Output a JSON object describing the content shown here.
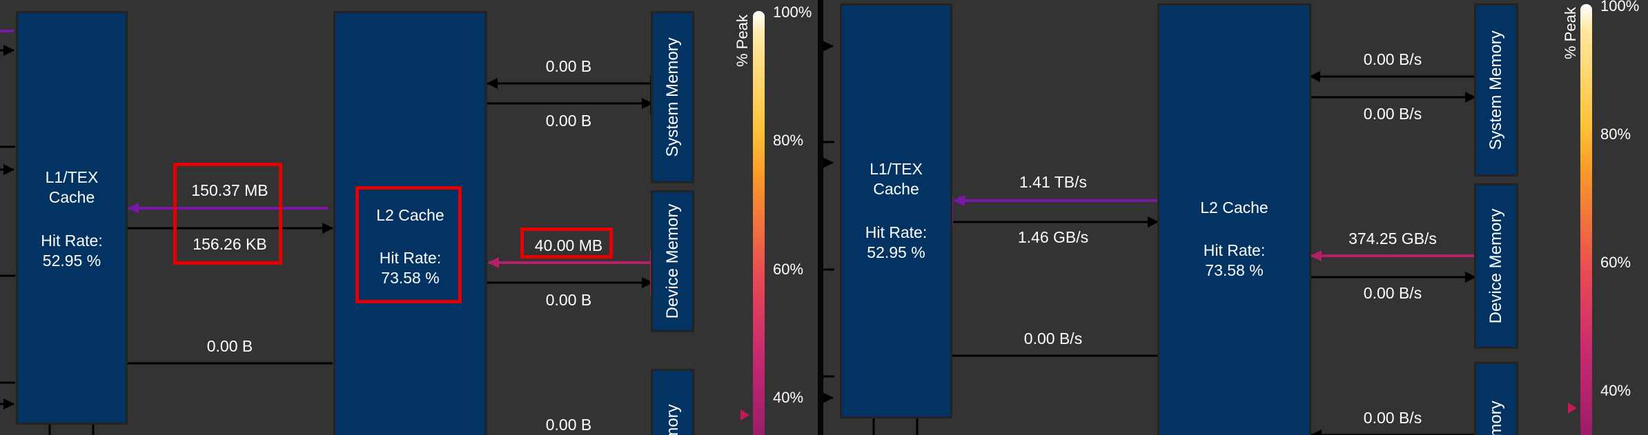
{
  "colors": {
    "background": "#333333",
    "block": "#023363",
    "purple_link": "#7a16a8",
    "magenta_link": "#b51f6a",
    "highlight": "#e40000"
  },
  "left": {
    "l1": {
      "title1": "L1/TEX",
      "title2": "Cache",
      "hit_label": "Hit Rate:",
      "hit_value": "52.95 %"
    },
    "l2": {
      "title": "L2 Cache",
      "hit_label": "Hit Rate:",
      "hit_value": "73.58 %"
    },
    "system_memory": "System Memory",
    "device_memory": "Device Memory",
    "bottom_memory": "mory",
    "labels": {
      "l1_to_l2_top": "150.37 MB",
      "l1_to_l2_bottom": "156.26 KB",
      "l1_bottom_link": "0.00 B",
      "sys_read": "0.00 B",
      "sys_write": "0.00 B",
      "dev_read": "40.00 MB",
      "dev_write": "0.00 B",
      "bottom_link": "0.00 B"
    }
  },
  "right": {
    "l1": {
      "title1": "L1/TEX",
      "title2": "Cache",
      "hit_label": "Hit Rate:",
      "hit_value": "52.95 %"
    },
    "l2": {
      "title": "L2 Cache",
      "hit_label": "Hit Rate:",
      "hit_value": "73.58 %"
    },
    "system_memory": "System Memory",
    "device_memory": "Device Memory",
    "bottom_memory": "mory",
    "labels": {
      "l1_to_l2_top": "1.41 TB/s",
      "l1_to_l2_bottom": "1.46 GB/s",
      "l1_bottom_link": "0.00 B/s",
      "sys_read": "0.00 B/s",
      "sys_write": "0.00 B/s",
      "dev_read": "374.25 GB/s",
      "dev_write": "0.00 B/s",
      "bottom_link": "0.00 B/s"
    }
  },
  "legend": {
    "title": "% Peak",
    "ticks": [
      "100%",
      "80%",
      "60%",
      "40%"
    ]
  }
}
